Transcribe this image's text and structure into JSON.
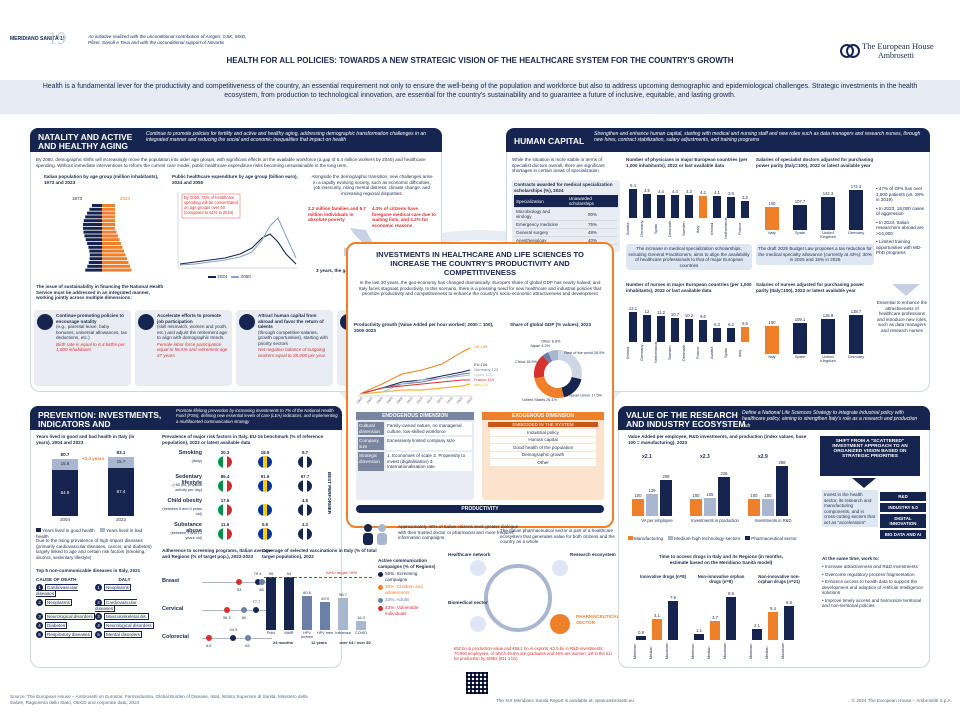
{
  "header": {
    "badge_text": "MERIDIANO SANITÀ 19",
    "sponsor_note": "An initiative realized with the unconditional contribution of Amgen, GSK, MSD, Pfizer, Sanofi e Teva and with the unconditional support of Novartis",
    "title": "HEALTH FOR ALL POLICIES: TOWARDS A NEW STRATEGIC VISION OF THE HEALTHCARE SYSTEM FOR THE COUNTRY'S GROWTH",
    "brand_line1": "The European House",
    "brand_line2": "Ambrosetti"
  },
  "intro": {
    "text": "Health is a fundamental lever for the productivity and competitiveness of the country, an essential requirement not only to ensure the well-being of the population and workforce but also to address upcoming demographic and epidemiological challenges. Strategic investments in the health ecosystem, from production to technological innovation, are essential for the country's sustainability and to guarantee a future of inclusive, equitable, and lasting growth."
  },
  "natality": {
    "title": "NATALITY AND ACTIVE AND HEALTHY AGING",
    "desc": "Continue to promote policies for fertility and active and healthy aging, addressing demographic transformation challenges in an integrated manner and reducing the social and economic inequalities that impact on health",
    "lead": "By 2050, demographic shifts will increasingly move the population into older age groups, with significant effects on the available workforce (a gap of 5.4 million workers by 2040) and healthcare spending. Without immediate interventions to reform the current care model, public healthcare expenditure risks becoming unsustainable in the long term.",
    "pyramid_title": "Italian population by age group (million inhabitants), 1973 and 2023",
    "pyramid_years": [
      "1973",
      "2023"
    ],
    "spend_title": "Public healthcare expenditure by age group (billion euro), 2024 and 2050",
    "spend_note": "By 2050, 75% of healthcare spending will be concentrated on age groups over 60 (compared to 61% in 2024)",
    "spend_legend": [
      "2024",
      "2050"
    ],
    "aging_text": "Alongside the demographic transition, new challenges arise in a rapidly evolving society, such as economic difficulties, job insecurity, rising mental distress, climate change, and increasing regional disparities.",
    "stat1": "2.2 million families and 5.7 million individuals in absolute poverty",
    "stat2": "4.3% of citizens have foregone medical care due to waiting lists, and 4.2% for economic reasons",
    "stat3": "3 years, the gap in life expectancy between Regions",
    "issue": "The issue of sustainability in financing the National Health Service must be addressed in an integrated manner, working jointly across multiple dimensions:",
    "actions": [
      {
        "title": "Continue promoting policies to encourage natality",
        "body": "(e.g., parental leave, baby bonuses, universal allowances, tax deductions, etc.)",
        "note": "Birth rate is equal to 6.4 births per 1,000 inhabitants"
      },
      {
        "title": "Accelerate efforts to promote job participation",
        "body": "(skill mismatch, women and youth, etc.) and adjust the retirement age to align with demographic trends.",
        "note": "Female labor force participation equal to 56.5% and retirement age 67 years"
      },
      {
        "title": "Attract human capital from abroad and favor the return of talents",
        "body": "(through competitive salaries, growth opportunities), starting with priority sectors",
        "note": "Net negative balance of outgoing workers equal to 35,000 per year"
      },
      {
        "title": "No action on the fiscal lever",
        "body": "Already above the EU average and likewise incompatible with the existing scenario",
        "note": ""
      }
    ]
  },
  "human_capital": {
    "title": "HUMAN CAPITAL",
    "desc": "Strengthen and enhance human capital, starting with medical and nursing staff and new roles such as data managers and research nurses, through new hires, contract stabilization, salary adjustments, and training programs",
    "lead": "While the situation is more stable in terms of specialist doctors overall, there are significant shortages in certain areas of specialization",
    "contracts_title": "Contracts awarded for medical specialization scholarships (%), 2024",
    "contracts_head": [
      "Specialization",
      "Unawarded scholarships"
    ],
    "contracts_rows": [
      [
        "Microbiology and virology",
        "90%"
      ],
      [
        "Emergency medicine",
        "75%"
      ],
      [
        "General surgery",
        "48%"
      ],
      [
        "Anesthesiology",
        "40%"
      ]
    ],
    "physicians_title": "Number of physicians in major European countries (per 1,000 inhabitants), 2022 or last available data",
    "physicians_cats": [
      "Austria",
      "Germany",
      "Spain",
      "Denmark",
      "Sweden",
      "Italy",
      "Ireland",
      "Netherlands",
      "France"
    ],
    "physicians_vals": [
      5.4,
      4.5,
      4.4,
      4.4,
      4.3,
      4.2,
      4.1,
      3.9,
      3.2
    ],
    "salary_title": "Salaries of specialist doctors adjusted for purchasing power parity (Italy=100), 2022 or latest available year",
    "salary_cats": [
      "Italy",
      "Spain",
      "United Kingdom",
      "Germany"
    ],
    "salary_vals": [
      100.0,
      107.7,
      142.3,
      172.3
    ],
    "gp_points": [
      "47% of GPs has over 1,500 patients (vs. 28% in 2019)",
      "In 2023, 18,000 cases of aggression",
      "In 2024, Italian researchers abroad are >14,000",
      "Limited training opportunities with MD-PhD programs"
    ],
    "increase_note": "The increase in medical specialization scholarships, including General Practitioners, aims to align the availability of healthcare professionals to that of major European countries",
    "budget_note": "The draft 2025 Budget Law proposes a tax reduction for the medical specialty allowance (currently at 43%): 30% in 2025 and 15% in 2026",
    "nurses_title": "Number of nurses in major European countries (per 1,000 inhabitants), 2022 or last available data",
    "nurses_cats": [
      "Ireland",
      "Germany",
      "Netherlands",
      "Sweden",
      "Denmark",
      "France",
      "Austria",
      "Spain",
      "Italy"
    ],
    "nurses_vals": [
      13.1,
      12.0,
      11.2,
      10.7,
      10.2,
      9.6,
      6.3,
      6.2,
      6.5
    ],
    "nurse_salary_title": "Salaries of nurses adjusted for purchasing power parity (Italy=100), 2022 or latest available year",
    "nurse_salary_cats": [
      "Italy",
      "Spain",
      "United Kingdom",
      "Germany"
    ],
    "nurse_salary_vals": [
      100.0,
      109.1,
      125.9,
      138.7
    ],
    "essential": "Essential to enhance the attractiveness of healthcare professions and introduce new roles, such as data managers and research nurses"
  },
  "center": {
    "title": "INVESTMENTS IN HEALTHCARE AND LIFE SCIENCES TO INCREASE THE COUNTRY'S PRODUCTIVITY AND COMPETITIVENESS",
    "lead": "In the last 30 years, the geo-economy has changed dramatically: Europe's share of global GDP has nearly halved, and Italy faces stagnant productivity. In this scenario, there is a pressing need for new healthcare and industrial policies that prioritize productivity and competitiveness to enhance the country's socio-economic attractiveness and development",
    "productivity_title": "Productivity growth (Value Added per hour worked; 2000 = 100), 2000-2023",
    "series_labels": [
      "UK",
      "EU",
      "Germany",
      "Spain",
      "France",
      "Italy"
    ],
    "series_endvals": [
      "159",
      "126",
      "123",
      "121",
      "115",
      "111"
    ],
    "gdp_title": "Share of global GDP (% values), 2023",
    "gdp_slices": [
      {
        "label": "Rest of the world",
        "value": 28.5
      },
      {
        "label": "European Union",
        "value": 17.5
      },
      {
        "label": "United States",
        "value": 26.1
      },
      {
        "label": "China",
        "value": 16.9
      },
      {
        "label": "Japan",
        "value": 4.2
      },
      {
        "label": "Other",
        "value": 6.8
      }
    ],
    "endo_title": "ENDOGENOUS DIMENSION",
    "endo_rows": [
      {
        "label": "Cultural dimension",
        "text": "Family-owned nature, no managerial culture, low-skilled workforce"
      },
      {
        "label": "Company size",
        "text": "Excessively limited company size"
      },
      {
        "label": "Strategic dimension",
        "text": "1. Economies of scale  2. Propensity to invest (digitalisation)  3. Internationalisation rate"
      }
    ],
    "exo_title": "EXOGENOUS DIMENSION",
    "exo_head": "EMBEDDED IN THE SYSTEM",
    "exo_items": [
      "Industrial policy",
      "Human capital",
      "Good health of the population",
      "Demographic growth",
      "Other"
    ],
    "productivity_label": "PRODUCTIVITY",
    "italians_note": "Approximately 40% of Italian citizens seek greater dialogue with their trusted doctor or pharmacist and more frequent information campaigns",
    "pharma_note": "The Italian pharmaceutical sector is part of a healthcare ecosystem that generates value for both citizens and the country as a whole",
    "eco_labels": [
      "Healthcare network",
      "Research ecosystem",
      "Biomedical sector",
      "PHARMACEUTICAL SECTOR"
    ],
    "pharma_stats": "€52 bn in production value and €58.1 bn in exports; €2.5 bn in R&D investments; 70,000 employees, of which 49.5% are graduates and 46% are women; 1st in the EU for production by SMEs (€11.1 bn)"
  },
  "prevention": {
    "title": "PREVENTION: INVESTMENTS, INDICATORS AND COMMUNICATION",
    "desc": "Promote lifelong prevention by increasing investments to 7% of the National Health Fund (FSN), defining new essential levels of care (LEA) indicators, and implementing a multifaceted communication strategy",
    "lived_title": "Years lived in good and bad health in Italy (in years), 2004 and 2023",
    "lived_cats": [
      "2004",
      "2023"
    ],
    "lived_total": [
      80.7,
      83.1
    ],
    "lived_good": [
      64.9,
      67.4
    ],
    "lived_bad": [
      15.8,
      15.7
    ],
    "lived_gap": "+2.4 years",
    "lived_legend": [
      "Years lived in good health",
      "Years lived in bad health"
    ],
    "chronic_note": "Due to the rising prevalence of high-impact diseases (primarily cardiovascular diseases, cancer, and diabetes) largely linked to age and certain risk factors (smoking, alcohol, sedentary lifestyle)",
    "top5_title": "Top 5 non-communicable diseases in Italy, 2021",
    "top5_head": [
      "CAUSE OF DEATH",
      "DALY"
    ],
    "top5_cause": [
      "Cardiovascular diseases",
      "Neoplasms",
      "Neurological disorders",
      "Diabetes",
      "Respiratory diseases"
    ],
    "top5_daly": [
      "Neoplasms",
      "Cardiovascular diseases",
      "Musculoskeletal dis.",
      "Neurological disorders",
      "Mental disorders"
    ],
    "risk_title": "Prevalence of major risk factors in Italy, EU-15 benchmark (% of reference population), 2022 or latest available data",
    "risk_rows": [
      {
        "label": "Smoking",
        "sub": "(daily)",
        "vals": [
          "20.3",
          "18.9",
          "9.7"
        ]
      },
      {
        "label": "Sedentary lifestyle",
        "sub": "(>65 yrs, physical activity per day)",
        "vals": [
          "86.4",
          "91.6",
          "67.7"
        ]
      },
      {
        "label": "Child obesity",
        "sub": "(between 5 and 9 years old)",
        "vals": [
          "17.6",
          "",
          "4.5"
        ]
      },
      {
        "label": "Substance abuse",
        "sub": "(between 9 and 12 years old)",
        "vals": [
          "11.6",
          "5.9",
          "3.2"
        ]
      }
    ],
    "best_performer": "BEST PERFORMER",
    "screening_title": "Adherence to screening programs, Italian average and Regions (% of target pop.), 2022-2023",
    "screening_rows": [
      {
        "label": "Breast",
        "vals": [
          79.4,
          53.0,
          85.0
        ]
      },
      {
        "label": "Cervical",
        "vals": [
          77.7,
          35.3,
          60.0
        ]
      },
      {
        "label": "Colorectal",
        "vals": [
          44.9,
          9.6,
          65.0
        ]
      }
    ],
    "vacc_title": "Coverage of selected vaccinations in Italy (% of total target population), 2022",
    "vacc_cats": [
      "Polio",
      "MMR",
      "HPV women",
      "HPV men",
      "Influenza",
      "COVID"
    ],
    "vacc_vals": [
      95.0,
      94.0,
      60.6,
      49.9,
      56.7,
      16.3
    ],
    "vacc_groups": [
      "24 months",
      "12 years",
      "over 64 / over 80"
    ],
    "who_target": "WHO target: 95%",
    "campaign_title": "Active communication campaigns (% of Regions)",
    "campaign_items": [
      "56%: Screening campaigns",
      "38%: Children and adolescents",
      "33%: Adults",
      "43%: Vulnerable individuals"
    ]
  },
  "research": {
    "title": "VALUE OF THE RESEARCH AND INDUSTRY ECOSYSTEM",
    "desc": "Define a National Life Sciences Strategy to integrate industrial policy with healthcare policy, aiming to strengthen Italy's role as a research and production hub",
    "va_title": "Value Added per employee, R&D investments, and production (index values, base 100 = manufacturing), 2023",
    "va_groups": [
      "VA per employee",
      "Investments in production",
      "Investments in R&D"
    ],
    "va_values": [
      [
        100,
        129,
        208
      ],
      [
        100,
        105,
        226
      ],
      [
        100,
        100,
        288
      ]
    ],
    "va_mult": [
      "x2.1",
      "x2.3",
      "x2.9"
    ],
    "va_legend": [
      "Manufacturing",
      "Medium-high technology sectors",
      "Pharmaceutical sector"
    ],
    "access_title": "Time to access drugs in Italy and its Regions (in months, estimate based on the Meridiano Sanità model)",
    "access_groups": [
      {
        "name": "Innovative drugs (n=8)",
        "cats": [
          "Minimum",
          "Median",
          "Maximum"
        ],
        "vals": [
          0.8,
          4.1,
          7.6
        ]
      },
      {
        "name": "Non-innovative orphan drugs (n=8)",
        "cats": [
          "Minimum",
          "Median",
          "Maximum"
        ],
        "vals": [
          1.1,
          3.7,
          8.5
        ]
      },
      {
        "name": "Non-innovative non-orphan drugs (n=21)",
        "cats": [
          "Minimum",
          "Median",
          "Maximum"
        ],
        "vals": [
          2.1,
          5.4,
          6.6
        ]
      }
    ],
    "shift_text": "SHIFT FROM A \"SCATTERED\" INVESTMENT APPROACH TO AN ORGANIZED VISION BASED ON STRATEGIC PRIORITIES",
    "shift_note": "Invest in the health sector, its research and manufacturing components, and in cross-cutting sectors that act as \"accelerators\"",
    "accelerators": [
      "R&D",
      "INDUSTRY 5.0",
      "DIGITAL INNOVATION",
      "BIG DATA AND AI"
    ],
    "same_time_title": "At the same time, work to:",
    "same_time": [
      "Increase attractiveness and R&D investments",
      "Overcome regulatory process fragmentation",
      "Enhance access to health data to support the development and adoption of Artificial Intelligence solutions",
      "Improve timely access and harmonize territorial and non-territorial policies"
    ]
  },
  "footer": {
    "source": "Source: The European House – Ambrosetti on Eurostat, Farmindustria, Global Burden of Disease, Istat, Istituto Superiore di Sanità, Ministero della Salute, Ragioneria dello Stato, OECD and corporate data, 2024",
    "report": "The XIX Meridiano Sanità Report is available at: www.ambrosetti.eu",
    "copyright": "© 2024 The European House – Ambrosetti S.p.A."
  }
}
